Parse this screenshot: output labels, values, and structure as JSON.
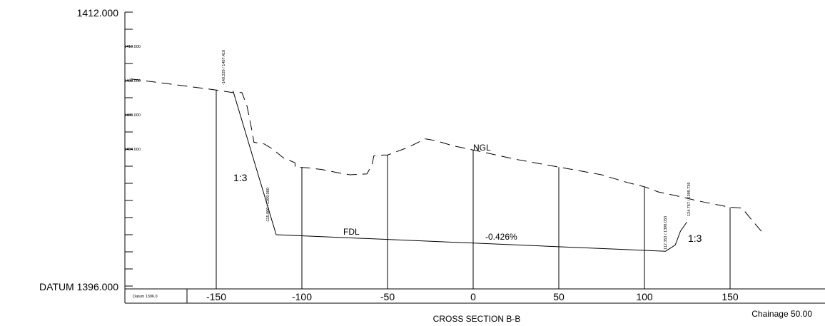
{
  "diagram": {
    "title": "CROSS SECTION B-B",
    "chainage_label": "Chainage 50.00",
    "top_level_label": "1412.000",
    "datum_label": "DATUM 1396.000",
    "datum_small_label": "Datum 1396.0",
    "elevation_labels": [
      "1410.000",
      "1408.000",
      "1406.000",
      "1404.000"
    ],
    "x_ticks": [
      {
        "value": -150,
        "label": "-150"
      },
      {
        "value": -100,
        "label": "-100"
      },
      {
        "value": -50,
        "label": "-50"
      },
      {
        "value": 0,
        "label": "0"
      },
      {
        "value": 50,
        "label": "50"
      },
      {
        "value": 100,
        "label": "100"
      },
      {
        "value": 150,
        "label": "150"
      }
    ],
    "ngl_label": "NGL",
    "fdl_label": "FDL",
    "grade_label": "-0.426%",
    "slope_left_label": "1:3",
    "slope_right_label": "1:3",
    "point_labels": [
      {
        "text": "-140.229 / 1407.410"
      },
      {
        "text": "-115.000 / 1399.000"
      },
      {
        "text": "112.353 / 1398.033"
      },
      {
        "text": "124.767 / 1399.739"
      }
    ],
    "x_range": [
      -200,
      200
    ],
    "y_range": [
      1396,
      1412
    ]
  }
}
